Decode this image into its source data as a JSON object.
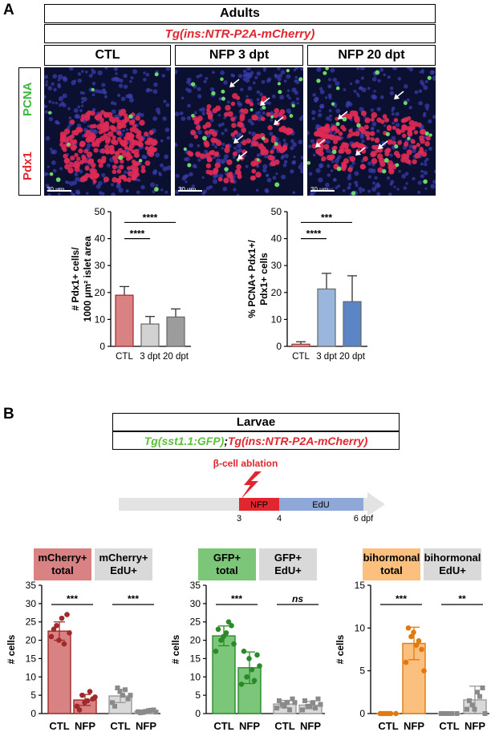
{
  "panelA": {
    "letter": "A",
    "header": "Adults",
    "transgene": "Tg(ins:NTR-P2A-mCherry)",
    "conditions": [
      "CTL",
      "NFP 3 dpt",
      "NFP 20 dpt"
    ],
    "stain_green": "PCNA",
    "stain_red": "Pdx1",
    "scale_bar": "30 um",
    "colors": {
      "green": "#3db83d",
      "red": "#e0262f",
      "title_red": "#e0262f"
    }
  },
  "panelB": {
    "letter": "B",
    "header": "Larvae",
    "transgene_green": "Tg(sst1.1:GFP)",
    "separator": ";",
    "transgene_red": "Tg(ins:NTR-P2A-mCherry)",
    "ablation_label": "β-cell ablation",
    "timeline": {
      "nfp": "NFP",
      "edu": "EdU",
      "ticks": [
        "3",
        "4",
        "6 dpf"
      ]
    },
    "colors": {
      "green": "#5bbf3a",
      "red": "#e0262f",
      "orange": "#f08a1c"
    }
  },
  "chart_data": [
    {
      "type": "bar",
      "categories": [
        "CTL",
        "3 dpt",
        "20 dpt"
      ],
      "values": [
        19,
        8.3,
        10.9
      ],
      "errors": [
        3.2,
        2.8,
        3.0
      ],
      "ylabel_lines": [
        "# Pdx1+ cells/",
        "1000 µm² islet area"
      ],
      "yticks": [
        "0",
        "10",
        "20",
        "30",
        "40",
        "50"
      ],
      "ylim": [
        0,
        50
      ],
      "significance": [
        "****",
        "****"
      ],
      "colors": [
        "#d98284",
        "#d2d2d2",
        "#9c9c9c"
      ]
    },
    {
      "type": "bar",
      "categories": [
        "CTL",
        "3 dpt",
        "20 dpt"
      ],
      "values": [
        0.8,
        21.3,
        16.6
      ],
      "errors": [
        0.9,
        5.8,
        9.6
      ],
      "ylabel_lines": [
        "% PCNA+ Pdx1+/",
        "Pdx1+ cells"
      ],
      "yticks": [
        "0",
        "10",
        "20",
        "30",
        "40",
        "50"
      ],
      "ylim": [
        0,
        50
      ],
      "significance": [
        "****",
        "***"
      ],
      "colors": [
        "#c0c0c0",
        "#9bb6dc",
        "#5b85c4"
      ]
    },
    {
      "type": "bar",
      "groups": [
        {
          "title": [
            "mCherry+",
            "total"
          ],
          "color": "#d98284"
        },
        {
          "title": [
            "mCherry+",
            "EdU+"
          ],
          "color": "#d9d9d9"
        }
      ],
      "categories": [
        "CTL",
        "NFP",
        "CTL",
        "NFP"
      ],
      "values": [
        22.5,
        3.7,
        4.8,
        0.6
      ],
      "errors": [
        2.5,
        1.5,
        1.8,
        0.4
      ],
      "points": [
        [
          21,
          24,
          26,
          27,
          23,
          20,
          19,
          22
        ],
        [
          2,
          5,
          3.5,
          4,
          1,
          3,
          6,
          4.5
        ],
        [
          3,
          7,
          5,
          4,
          2,
          6,
          6.5,
          5
        ],
        [
          0.5,
          0.3,
          0.8,
          1,
          0.2,
          0.6,
          0.9,
          0.4
        ]
      ],
      "ylabel": "# cells",
      "yticks": [
        "0",
        "5",
        "10",
        "15",
        "20",
        "25",
        "30",
        "35"
      ],
      "ylim": [
        0,
        35
      ],
      "significance": [
        "***",
        "***"
      ],
      "bar_colors": [
        "#d98284",
        "#d98284",
        "#d9d9d9",
        "#d9d9d9"
      ],
      "edge_colors": [
        "#a02a2a",
        "#a02a2a",
        "#9a9a9a",
        "#9a9a9a"
      ]
    },
    {
      "type": "bar",
      "groups": [
        {
          "title": [
            "GFP+",
            "total"
          ],
          "color": "#7cc67a"
        },
        {
          "title": [
            "GFP+",
            "EdU+"
          ],
          "color": "#d9d9d9"
        }
      ],
      "categories": [
        "CTL",
        "NFP",
        "CTL",
        "NFP"
      ],
      "values": [
        21.2,
        12.5,
        2.6,
        2.3
      ],
      "errors": [
        2.7,
        4.3,
        1.0,
        1.0
      ],
      "points": [
        [
          17,
          20,
          22,
          24,
          23,
          21,
          25,
          19
        ],
        [
          8,
          10,
          12,
          16,
          17,
          15,
          9,
          13
        ],
        [
          1.5,
          2.5,
          3,
          4,
          3.5,
          2,
          1,
          3
        ],
        [
          1,
          2,
          3,
          4,
          3.5,
          2,
          1.5,
          2.5
        ]
      ],
      "ylabel": "# cells",
      "yticks": [
        "0",
        "5",
        "10",
        "15",
        "20",
        "25",
        "30",
        "35"
      ],
      "ylim": [
        0,
        35
      ],
      "significance": [
        "***",
        "ns"
      ],
      "bar_colors": [
        "#7cc67a",
        "#7cc67a",
        "#d9d9d9",
        "#d9d9d9"
      ],
      "edge_colors": [
        "#2a8a2a",
        "#2a8a2a",
        "#9a9a9a",
        "#9a9a9a"
      ]
    },
    {
      "type": "bar",
      "groups": [
        {
          "title": [
            "bihormonal",
            "total"
          ],
          "color": "#fbbf7e"
        },
        {
          "title": [
            "bihormonal",
            "EdU+"
          ],
          "color": "#d9d9d9"
        }
      ],
      "categories": [
        "CTL",
        "NFP",
        "CTL",
        "NFP"
      ],
      "values": [
        0,
        8.2,
        0,
        1.6
      ],
      "errors": [
        0,
        1.9,
        0,
        1.6
      ],
      "points": [
        [
          0,
          0,
          0,
          0,
          0,
          0
        ],
        [
          6,
          9,
          8,
          7.5,
          10,
          9.5,
          8.5,
          5
        ],
        [
          0,
          0,
          0,
          0,
          0,
          0
        ],
        [
          0.5,
          1,
          2.5,
          3,
          1.5,
          0.5,
          2,
          0
        ]
      ],
      "ylabel": "# cells",
      "yticks": [
        "0",
        "5",
        "10",
        "15"
      ],
      "ylim": [
        0,
        15
      ],
      "significance": [
        "***",
        "**"
      ],
      "bar_colors": [
        "#fbbf7e",
        "#fbbf7e",
        "#d9d9d9",
        "#d9d9d9"
      ],
      "edge_colors": [
        "#e07a10",
        "#e07a10",
        "#9a9a9a",
        "#9a9a9a"
      ]
    }
  ]
}
